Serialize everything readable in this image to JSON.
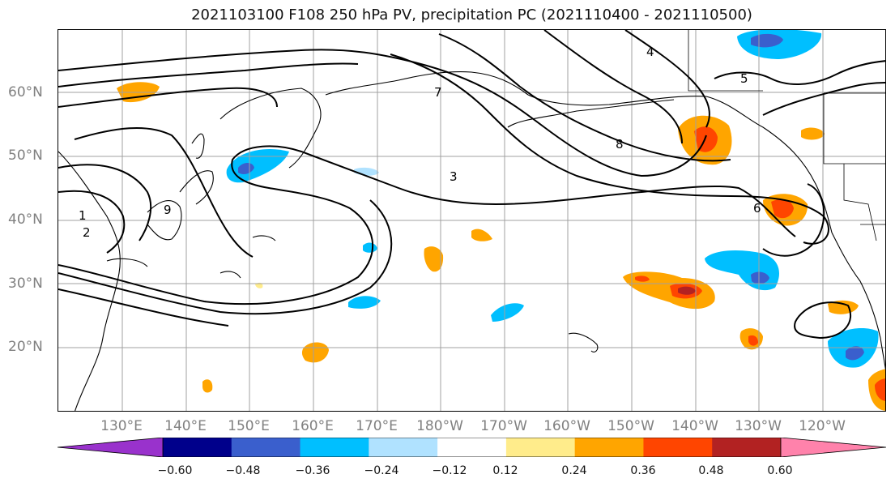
{
  "title": "2021103100 F108 250 hPa PV, precipitation PC (2021110400 - 2021110500)",
  "lat_labels": [
    "60°N",
    "50°N",
    "40°N",
    "30°N",
    "20°N"
  ],
  "lon_labels": [
    "130°E",
    "140°E",
    "150°E",
    "160°E",
    "170°E",
    "180°W",
    "170°W",
    "160°W",
    "150°W",
    "140°W",
    "130°W",
    "120°W"
  ],
  "colorbar": {
    "ticks": [
      "−0.60",
      "−0.48",
      "−0.36",
      "−0.24",
      "−0.12",
      "0.12",
      "0.24",
      "0.36",
      "0.48",
      "0.60"
    ],
    "colors": [
      "#9932cc",
      "#00008b",
      "#3a5fcd",
      "#00bfff",
      "#b0e2ff",
      "#ffffff",
      "#ffec8b",
      "#ffa500",
      "#ff4500",
      "#b22222",
      "#ff82ab"
    ]
  },
  "contour_labels": [
    "1",
    "2",
    "3",
    "4",
    "5",
    "6",
    "7",
    "8",
    "9"
  ]
}
